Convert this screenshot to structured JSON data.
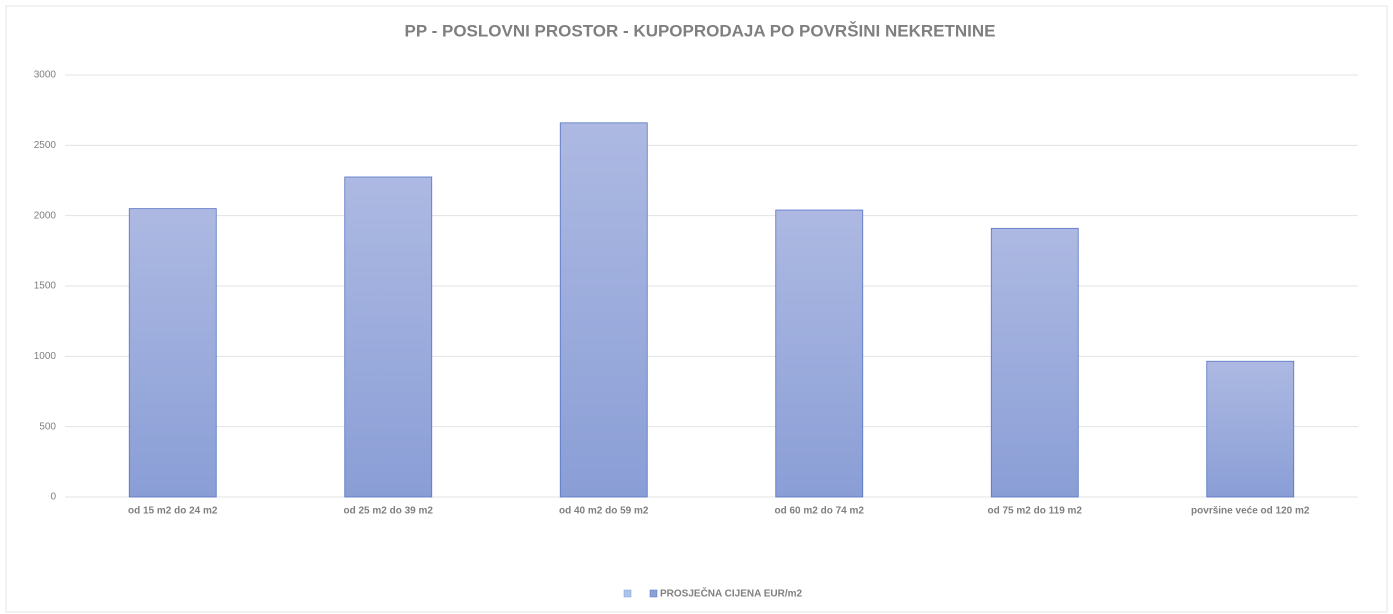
{
  "chart_data": {
    "type": "bar",
    "title": "PP - POSLOVNI PROSTOR - KUPOPRODAJA PO POVRŠINI NEKRETNINE",
    "categories": [
      "od 15 m2 do 24 m2",
      "od 25 m2 do 39 m2",
      "od 40 m2 do 59 m2",
      "od 60 m2 do 74 m2",
      "od 75 m2 do 119 m2",
      "površine veće od 120 m2"
    ],
    "series": [
      {
        "name": "PROSJEČNA CIJENA EUR/m2",
        "color": "#8ea0d8",
        "values": [
          2050,
          2275,
          2660,
          2040,
          1910,
          965
        ]
      }
    ],
    "ylim": [
      0,
      3000
    ],
    "yticks": [
      0,
      500,
      1000,
      1500,
      2000,
      2500,
      3000
    ],
    "grid": true,
    "legend": "bottom"
  }
}
